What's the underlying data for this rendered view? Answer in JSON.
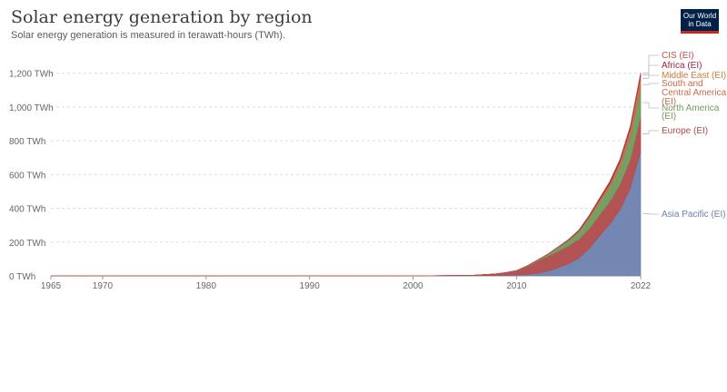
{
  "header": {
    "title": "Solar energy generation by region",
    "subtitle": "Solar energy generation is measured in terawatt-hours (TWh).",
    "logo_line1": "Our World",
    "logo_line2": "in Data"
  },
  "chart_data": {
    "type": "area",
    "stacked": true,
    "x": [
      1965,
      1970,
      1975,
      1980,
      1985,
      1990,
      1995,
      2000,
      2002,
      2004,
      2006,
      2008,
      2009,
      2010,
      2011,
      2012,
      2013,
      2014,
      2015,
      2016,
      2017,
      2018,
      2019,
      2020,
      2021,
      2022
    ],
    "xticks": [
      {
        "v": 1965,
        "label": "1965"
      },
      {
        "v": 1970,
        "label": "1970"
      },
      {
        "v": 1980,
        "label": "1980"
      },
      {
        "v": 1990,
        "label": "1990"
      },
      {
        "v": 2000,
        "label": "2000"
      },
      {
        "v": 2010,
        "label": "2010"
      },
      {
        "v": 2022,
        "label": "2022"
      }
    ],
    "ylim": [
      0,
      1300
    ],
    "yticks": [
      {
        "v": 0,
        "label": "0 TWh"
      },
      {
        "v": 200,
        "label": "200 TWh"
      },
      {
        "v": 400,
        "label": "400 TWh"
      },
      {
        "v": 600,
        "label": "600 TWh"
      },
      {
        "v": 800,
        "label": "800 TWh"
      },
      {
        "v": 1000,
        "label": "1,000 TWh"
      },
      {
        "v": 1200,
        "label": "1,200 TWh"
      }
    ],
    "grid": true,
    "legend_placement": "right",
    "series": [
      {
        "name": "Asia Pacific (EI)",
        "color": "#6d7fae",
        "values": [
          0,
          0,
          0,
          0,
          0,
          0,
          0,
          0.4,
          0.6,
          1,
          1.5,
          2.5,
          3.5,
          5,
          8,
          15,
          28,
          48,
          70,
          105,
          160,
          235,
          305,
          390,
          520,
          738
        ]
      },
      {
        "name": "Europe (EI)",
        "color": "#b04a4a",
        "values": [
          0,
          0,
          0,
          0,
          0,
          0,
          0,
          0.1,
          0.3,
          0.8,
          2.5,
          8,
          15,
          24,
          46,
          71,
          87,
          97,
          106,
          110,
          117,
          123,
          133,
          150,
          170,
          205
        ]
      },
      {
        "name": "North America (EI)",
        "color": "#6f9a5c",
        "values": [
          0,
          0,
          0,
          0,
          0,
          0,
          0.1,
          0.3,
          0.4,
          0.5,
          0.7,
          1,
          1.5,
          2.5,
          4,
          6,
          12,
          23,
          33,
          46,
          64,
          76,
          85,
          103,
          132,
          165
        ]
      },
      {
        "name": "South and Central America (EI)",
        "color": "#c8694a",
        "values": [
          0,
          0,
          0,
          0,
          0,
          0,
          0,
          0,
          0,
          0,
          0,
          0,
          0,
          0,
          0.1,
          0.2,
          0.3,
          0.5,
          1,
          2,
          5,
          10,
          16,
          24,
          33,
          48
        ]
      },
      {
        "name": "Middle East (EI)",
        "color": "#cf7a3d",
        "values": [
          0,
          0,
          0,
          0,
          0,
          0,
          0,
          0,
          0,
          0,
          0,
          0,
          0,
          0,
          0,
          0.1,
          0.2,
          0.4,
          0.8,
          1.5,
          2.5,
          4,
          6,
          9,
          15,
          27
        ]
      },
      {
        "name": "Africa (EI)",
        "color": "#9b2045",
        "values": [
          0,
          0,
          0,
          0,
          0,
          0,
          0,
          0,
          0,
          0,
          0,
          0,
          0,
          0,
          0.1,
          0.2,
          0.5,
          1.5,
          3,
          4.5,
          6.5,
          8,
          10,
          12,
          14,
          16
        ]
      },
      {
        "name": "CIS (EI)",
        "color": "#c4504f",
        "values": [
          0,
          0,
          0,
          0,
          0,
          0,
          0,
          0,
          0,
          0,
          0,
          0,
          0,
          0,
          0,
          0,
          0.1,
          0.2,
          0.5,
          0.8,
          1,
          1.5,
          2,
          2.5,
          3,
          3
        ]
      }
    ]
  }
}
